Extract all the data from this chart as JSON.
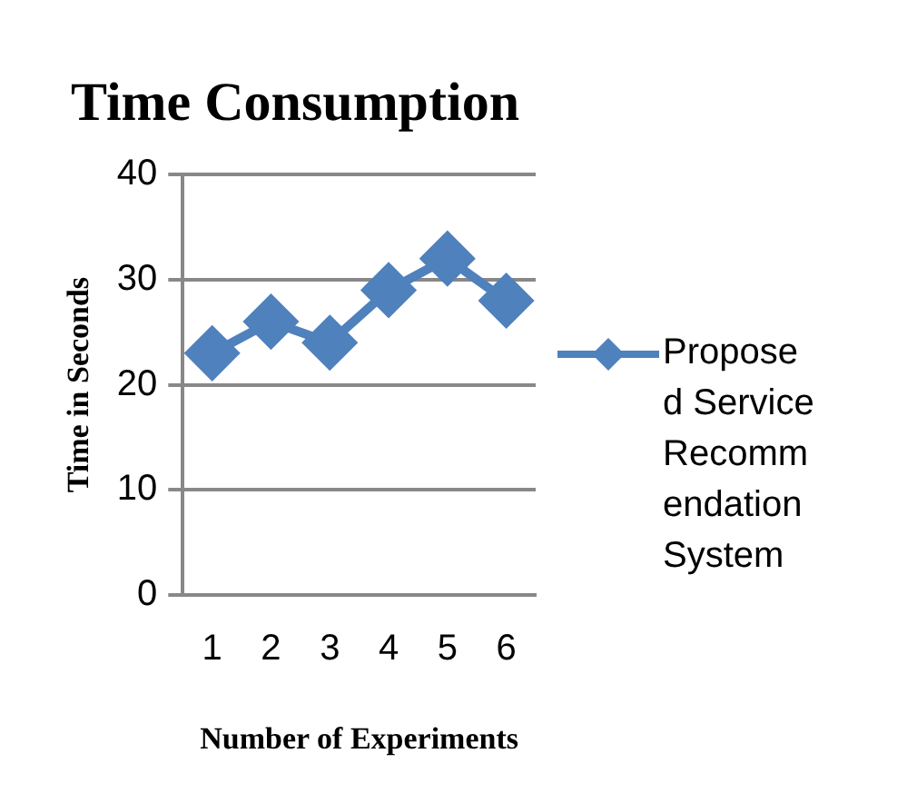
{
  "chart_data": {
    "type": "line",
    "title": "Time Consumption",
    "xlabel": "Number of Experiments",
    "ylabel": "Time in Seconds",
    "categories": [
      "1",
      "2",
      "3",
      "4",
      "5",
      "6"
    ],
    "series": [
      {
        "name": "Proposed Service Recommendation System",
        "color": "#4f81bd",
        "values": [
          23,
          26,
          24,
          29,
          32,
          28
        ]
      }
    ],
    "ylim": [
      0,
      40
    ],
    "yticks": [
      0,
      10,
      20,
      30,
      40
    ],
    "grid": "y",
    "legend": "right",
    "marker": "diamond",
    "line_style": "solid"
  }
}
